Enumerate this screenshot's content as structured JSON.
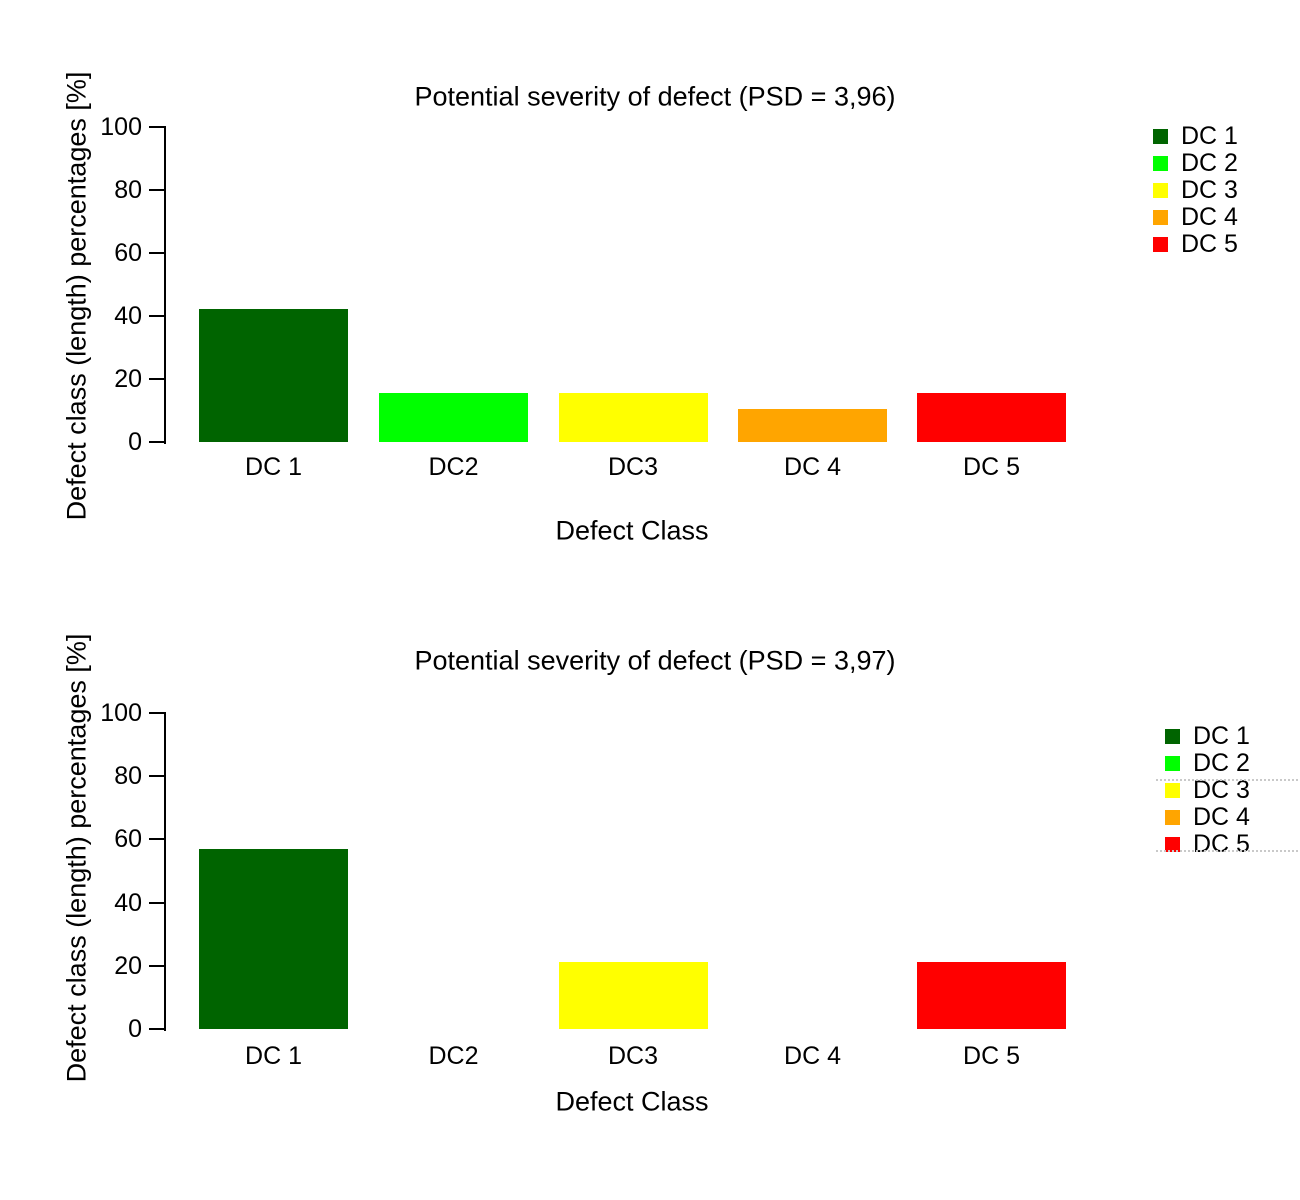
{
  "page": {
    "background": "#ffffff",
    "text_color": "#000000"
  },
  "chart_data": [
    {
      "type": "bar",
      "title": "Potential severity of defect (PSD = 3,96)",
      "psd": "3,96",
      "xlabel": "Defect Class",
      "ylabel": "Defect class (length) percentages [%]",
      "categories": [
        "DC 1",
        "DC2",
        "DC3",
        "DC 4",
        "DC 5"
      ],
      "values": [
        42.2,
        15.7,
        15.7,
        10.6,
        15.7
      ],
      "bar_colors": [
        "#006400",
        "#00ff00",
        "#ffff00",
        "#ffa500",
        "#ff0000"
      ],
      "ylim": [
        0,
        100
      ],
      "yticks": [
        0,
        20,
        40,
        60,
        80,
        100
      ],
      "grid": false,
      "legend": {
        "position": "right",
        "entries": [
          {
            "label": "DC 1",
            "color": "#006400"
          },
          {
            "label": "DC 2",
            "color": "#00ff00"
          },
          {
            "label": "DC 3",
            "color": "#ffff00"
          },
          {
            "label": "DC 4",
            "color": "#ffa500"
          },
          {
            "label": "DC 5",
            "color": "#ff0000"
          }
        ]
      }
    },
    {
      "type": "bar",
      "title": "Potential severity of defect (PSD = 3,97)",
      "psd": "3,97",
      "xlabel": "Defect Class",
      "ylabel": "Defect class (length) percentages [%]",
      "categories": [
        "DC 1",
        "DC2",
        "DC3",
        "DC 4",
        "DC 5"
      ],
      "values": [
        57.1,
        0,
        21.2,
        0,
        21.2
      ],
      "bar_colors": [
        "#006400",
        "#00ff00",
        "#ffff00",
        "#ffa500",
        "#ff0000"
      ],
      "ylim": [
        0,
        100
      ],
      "yticks": [
        0,
        20,
        40,
        60,
        80,
        100
      ],
      "grid": false,
      "legend": {
        "position": "right",
        "entries": [
          {
            "label": "DC 1",
            "color": "#006400"
          },
          {
            "label": "DC 2",
            "color": "#00ff00"
          },
          {
            "label": "DC 3",
            "color": "#ffff00"
          },
          {
            "label": "DC 4",
            "color": "#ffa500"
          },
          {
            "label": "DC 5",
            "color": "#ff0000"
          }
        ]
      }
    }
  ]
}
